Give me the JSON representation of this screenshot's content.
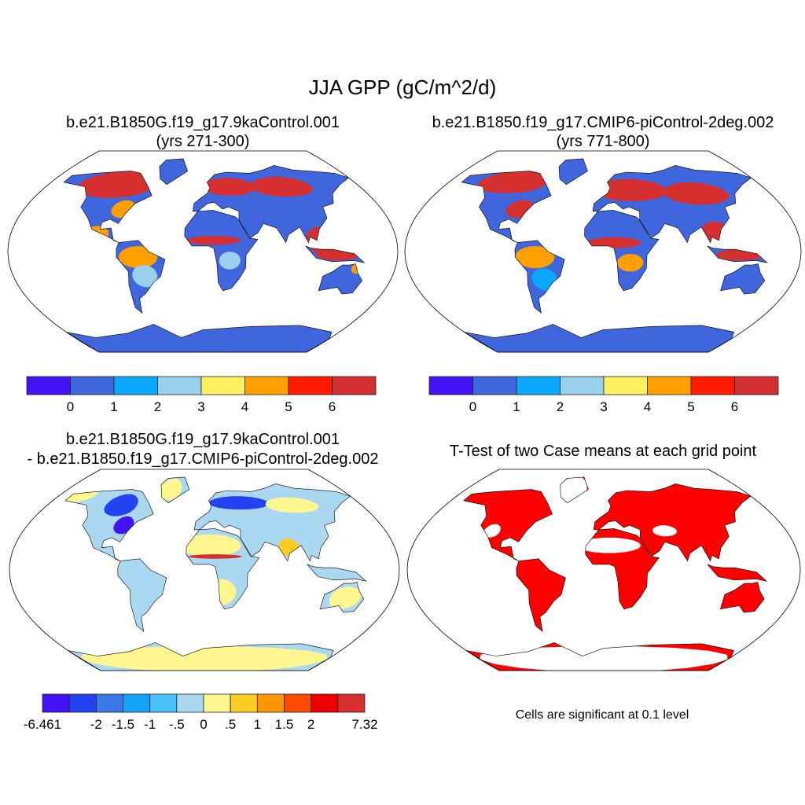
{
  "title": "JJA GPP (gC/m^2/d)",
  "panels": [
    {
      "title1": "b.e21.B1850G.f19_g17.9kaControl.001",
      "title2": "(yrs 271-300)",
      "base": "#3f66dc",
      "regions": [
        [
          -100,
          60,
          45,
          12,
          "#d62f2f"
        ],
        [
          -80,
          38,
          12,
          8,
          "#ffa000"
        ],
        [
          -100,
          15,
          12,
          8,
          "#ffa000"
        ],
        [
          -60,
          -5,
          18,
          10,
          "#ffa000"
        ],
        [
          -55,
          -22,
          12,
          10,
          "#99d0ee"
        ],
        [
          30,
          58,
          30,
          8,
          "#d62f2f"
        ],
        [
          90,
          58,
          35,
          9,
          "#d62f2f"
        ],
        [
          10,
          10,
          25,
          4,
          "#d62f2f"
        ],
        [
          25,
          -8,
          10,
          8,
          "#99d0ee"
        ],
        [
          110,
          10,
          14,
          12,
          "#d62f2f"
        ],
        [
          125,
          -3,
          20,
          5,
          "#d62f2f"
        ],
        [
          145,
          -15,
          6,
          5,
          "#ffa000"
        ]
      ]
    },
    {
      "title1": "b.e21.B1850.f19_g17.CMIP6-piControl-2deg.002",
      "title2": "(yrs 771-800)",
      "base": "#3f66dc",
      "regions": [
        [
          -105,
          62,
          40,
          10,
          "#d62f2f"
        ],
        [
          -82,
          38,
          14,
          8,
          "#d62f2f"
        ],
        [
          -62,
          -5,
          18,
          10,
          "#ffa000"
        ],
        [
          -55,
          -25,
          12,
          10,
          "#0aa8ff"
        ],
        [
          30,
          55,
          40,
          10,
          "#d62f2f"
        ],
        [
          100,
          52,
          35,
          10,
          "#d62f2f"
        ],
        [
          10,
          8,
          25,
          5,
          "#d62f2f"
        ],
        [
          25,
          -10,
          12,
          8,
          "#ffa000"
        ],
        [
          105,
          15,
          15,
          12,
          "#d62f2f"
        ],
        [
          125,
          -3,
          22,
          5,
          "#d62f2f"
        ]
      ]
    },
    {
      "title1": "b.e21.B1850G.f19_g17.9kaControl.001",
      "title2": "- b.e21.B1850.f19_g17.CMIP6-piControl-2deg.002",
      "base": "#aad8f0",
      "regions": [
        [
          -160,
          68,
          25,
          8,
          "#fff68f"
        ],
        [
          -95,
          58,
          18,
          10,
          "#2342f0"
        ],
        [
          -82,
          40,
          10,
          8,
          "#4113f5"
        ],
        [
          40,
          60,
          35,
          6,
          "#2342f0"
        ],
        [
          100,
          58,
          30,
          7,
          "#fff68f"
        ],
        [
          5,
          22,
          30,
          10,
          "#fff68f"
        ],
        [
          10,
          12,
          25,
          2,
          "#d62f2f"
        ],
        [
          15,
          -20,
          15,
          12,
          "#fff68f"
        ],
        [
          -45,
          72,
          15,
          10,
          "#fff68f"
        ],
        [
          135,
          -25,
          15,
          10,
          "#fff68f"
        ],
        [
          80,
          20,
          10,
          8,
          "#ffcc22"
        ],
        [
          0,
          -80,
          180,
          12,
          "#fff68f"
        ]
      ]
    },
    {
      "title1": "T-Test of two Case means at each grid point",
      "title2": "",
      "base": "#ff0000",
      "regions": [
        [
          5,
          22,
          30,
          7,
          "#ffffff"
        ],
        [
          -42,
          72,
          20,
          12,
          "#ffffff"
        ],
        [
          0,
          -80,
          180,
          12,
          "#ffffff"
        ],
        [
          60,
          35,
          12,
          5,
          "#ffffff"
        ],
        [
          -110,
          35,
          8,
          6,
          "#ffffff"
        ]
      ]
    }
  ],
  "colorbars": [
    {
      "colors": [
        "#4113f5",
        "#3f66dc",
        "#0aa8ff",
        "#99d0ee",
        "#fff060",
        "#ffa000",
        "#ff1a00",
        "#d62f2f"
      ],
      "labels": [
        "0",
        "1",
        "2",
        "3",
        "4",
        "5",
        "6"
      ]
    },
    {
      "colors": [
        "#4113f5",
        "#3f66dc",
        "#0aa8ff",
        "#99d0ee",
        "#fff060",
        "#ffa000",
        "#ff1a00",
        "#d62f2f"
      ],
      "labels": [
        "0",
        "1",
        "2",
        "3",
        "4",
        "5",
        "6"
      ]
    },
    {
      "colors": [
        "#4113f5",
        "#2342f0",
        "#3a78e8",
        "#12a4ff",
        "#48c2f8",
        "#aad8f0",
        "#fff68f",
        "#ffcc22",
        "#ff9500",
        "#ff4b00",
        "#f00000",
        "#d62f2f"
      ],
      "labels": [
        "-6.461",
        "",
        "-2",
        "-1.5",
        "-1",
        "-.5",
        "0",
        ".5",
        "1",
        "1.5",
        "2",
        "",
        "7.32"
      ]
    }
  ],
  "significance_note": "Cells are significant at 0.1 level"
}
